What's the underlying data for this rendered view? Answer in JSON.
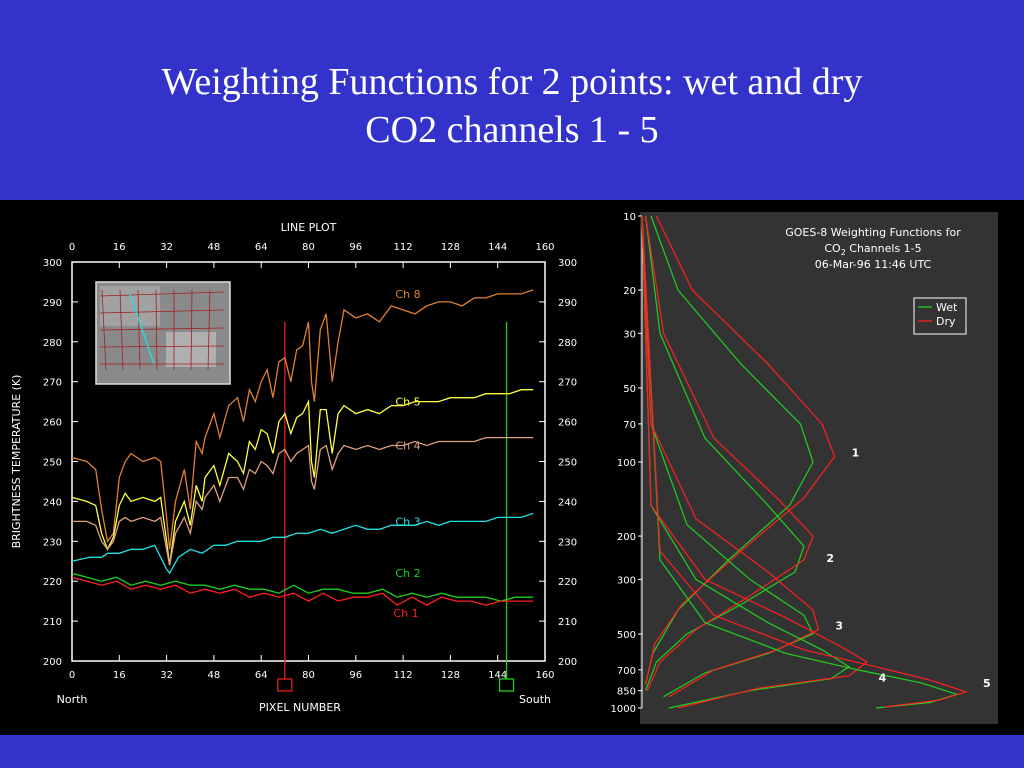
{
  "slide": {
    "title_line1": "Weighting Functions for 2 points: wet and dry",
    "title_line2": "CO2 channels 1 - 5"
  },
  "colors": {
    "background": "#3333cc",
    "panel": "#000000",
    "ch8": "#e08030",
    "ch5": "#ffff40",
    "ch4": "#e0a080",
    "ch3": "#20e0e0",
    "ch2": "#20d020",
    "ch1": "#ff2020",
    "wet": "#20d020",
    "dry": "#ff2020"
  },
  "chart_data": [
    {
      "type": "line",
      "title": "LINE PLOT",
      "xlabel": "PIXEL NUMBER",
      "ylabel": "BRIGHTNESS TEMPERATURE (K)",
      "xlim": [
        0,
        160
      ],
      "ylim": [
        200,
        300
      ],
      "x_ticks": [
        0,
        16,
        32,
        48,
        64,
        80,
        96,
        112,
        128,
        144,
        160
      ],
      "y_ticks": [
        200,
        210,
        220,
        230,
        240,
        250,
        260,
        270,
        280,
        290,
        300
      ],
      "x_left_label": "North",
      "x_right_label": "South",
      "markers": [
        {
          "x": 72,
          "color": "#e02020"
        },
        {
          "x": 147,
          "color": "#20d020"
        }
      ],
      "series": [
        {
          "name": "Ch 8",
          "color": "#e08030",
          "x": [
            0,
            5,
            8,
            10,
            12,
            14,
            16,
            18,
            20,
            24,
            28,
            30,
            32,
            33,
            35,
            38,
            40,
            42,
            44,
            45,
            48,
            50,
            53,
            56,
            58,
            60,
            62,
            64,
            66,
            68,
            70,
            72,
            74,
            76,
            78,
            80,
            81,
            82,
            84,
            86,
            88,
            90,
            92,
            96,
            100,
            104,
            108,
            112,
            116,
            120,
            124,
            128,
            132,
            136,
            140,
            144,
            148,
            152,
            156
          ],
          "y": [
            251,
            250,
            248,
            238,
            230,
            232,
            246,
            250,
            252,
            250,
            251,
            250,
            236,
            228,
            240,
            248,
            238,
            255,
            252,
            256,
            262,
            256,
            264,
            266,
            260,
            268,
            265,
            270,
            273,
            266,
            275,
            276,
            270,
            278,
            279,
            285,
            270,
            265,
            283,
            287,
            270,
            280,
            288,
            286,
            287,
            285,
            289,
            288,
            287,
            289,
            290,
            290,
            289,
            291,
            291,
            292,
            292,
            292,
            293
          ]
        },
        {
          "name": "Ch 5",
          "color": "#ffff40",
          "x": [
            0,
            5,
            8,
            10,
            12,
            14,
            16,
            18,
            20,
            24,
            28,
            30,
            32,
            33,
            35,
            38,
            40,
            42,
            44,
            45,
            48,
            50,
            53,
            56,
            58,
            60,
            62,
            64,
            66,
            68,
            70,
            72,
            74,
            76,
            78,
            80,
            81,
            82,
            84,
            86,
            88,
            90,
            92,
            96,
            100,
            104,
            108,
            112,
            116,
            120,
            124,
            128,
            132,
            136,
            140,
            144,
            148,
            152,
            156
          ],
          "y": [
            241,
            240,
            239,
            232,
            228,
            231,
            239,
            242,
            240,
            241,
            240,
            241,
            230,
            224,
            235,
            240,
            234,
            244,
            240,
            246,
            249,
            244,
            252,
            250,
            247,
            255,
            253,
            258,
            257,
            252,
            260,
            262,
            257,
            261,
            262,
            265,
            250,
            246,
            263,
            263,
            252,
            262,
            264,
            262,
            263,
            262,
            264,
            264,
            265,
            265,
            265,
            266,
            266,
            266,
            267,
            267,
            267,
            268,
            268
          ]
        },
        {
          "name": "Ch 4",
          "color": "#e0a080",
          "x": [
            0,
            5,
            8,
            10,
            12,
            14,
            16,
            18,
            20,
            24,
            28,
            30,
            32,
            33,
            35,
            38,
            40,
            42,
            44,
            45,
            48,
            50,
            53,
            56,
            58,
            60,
            62,
            64,
            66,
            68,
            70,
            72,
            74,
            76,
            78,
            80,
            81,
            82,
            84,
            86,
            88,
            90,
            92,
            96,
            100,
            104,
            108,
            112,
            116,
            120,
            124,
            128,
            132,
            136,
            140,
            144,
            148,
            152,
            156
          ],
          "y": [
            235,
            235,
            234,
            230,
            228,
            230,
            235,
            236,
            235,
            236,
            235,
            236,
            228,
            224,
            232,
            236,
            232,
            240,
            238,
            241,
            244,
            240,
            246,
            246,
            243,
            248,
            247,
            250,
            249,
            247,
            252,
            253,
            250,
            252,
            253,
            254,
            245,
            243,
            253,
            254,
            248,
            252,
            254,
            253,
            254,
            253,
            254,
            254,
            255,
            254,
            255,
            255,
            255,
            255,
            256,
            256,
            256,
            256,
            256
          ]
        },
        {
          "name": "Ch 3",
          "color": "#20e0e0",
          "x": [
            0,
            6,
            10,
            12,
            16,
            20,
            24,
            28,
            30,
            32,
            33,
            36,
            40,
            44,
            48,
            52,
            56,
            60,
            64,
            68,
            72,
            76,
            80,
            84,
            88,
            92,
            96,
            100,
            104,
            108,
            112,
            116,
            120,
            124,
            128,
            132,
            136,
            140,
            144,
            148,
            152,
            156
          ],
          "y": [
            225,
            226,
            226,
            227,
            227,
            228,
            228,
            229,
            226,
            223,
            222,
            226,
            228,
            227,
            229,
            229,
            230,
            230,
            230,
            231,
            231,
            232,
            232,
            233,
            232,
            233,
            234,
            233,
            233,
            234,
            234,
            234,
            235,
            234,
            235,
            235,
            235,
            235,
            236,
            236,
            236,
            237
          ]
        },
        {
          "name": "Ch 2",
          "color": "#20d020",
          "x": [
            0,
            5,
            10,
            15,
            20,
            25,
            30,
            35,
            40,
            45,
            50,
            55,
            60,
            65,
            70,
            75,
            80,
            85,
            90,
            95,
            100,
            105,
            110,
            115,
            120,
            125,
            130,
            135,
            140,
            145,
            150,
            156
          ],
          "y": [
            222,
            221,
            220,
            221,
            219,
            220,
            219,
            220,
            219,
            219,
            218,
            219,
            218,
            218,
            217,
            219,
            217,
            218,
            218,
            217,
            217,
            218,
            216,
            217,
            216,
            217,
            216,
            216,
            216,
            215,
            216,
            216
          ]
        },
        {
          "name": "Ch 1",
          "color": "#ff2020",
          "x": [
            0,
            5,
            10,
            15,
            20,
            25,
            30,
            35,
            40,
            45,
            50,
            55,
            60,
            65,
            70,
            75,
            80,
            85,
            90,
            95,
            100,
            105,
            110,
            115,
            120,
            125,
            130,
            135,
            140,
            145,
            150,
            156
          ],
          "y": [
            221,
            220,
            219,
            220,
            218,
            219,
            218,
            219,
            217,
            218,
            217,
            218,
            216,
            217,
            216,
            217,
            215,
            217,
            215,
            216,
            216,
            217,
            214,
            216,
            214,
            216,
            215,
            215,
            214,
            215,
            215,
            215
          ]
        }
      ]
    },
    {
      "type": "line",
      "title": "GOES-8 Weighting Functions for",
      "subtitle_prefix": "CO",
      "subtitle_sub": "2",
      "subtitle_suffix": " Channels 1-5",
      "subtitle2": "06-Mar-96 11:46 UTC",
      "y_scale": "log",
      "y_reversed": true,
      "ylim": [
        10,
        1000
      ],
      "y_ticks": [
        10,
        20,
        30,
        50,
        70,
        100,
        200,
        300,
        500,
        700,
        850,
        1000
      ],
      "legend": [
        "Wet",
        "Dry"
      ],
      "legend_position": "top-right",
      "series": [
        {
          "name": "Wet",
          "channel": "1",
          "color": "#20d020",
          "w": [
            0.05,
            0.2,
            0.55,
            0.88,
            0.95,
            0.82,
            0.48,
            0.2,
            0.06,
            0.02
          ],
          "p": [
            10,
            20,
            40,
            70,
            100,
            150,
            250,
            400,
            600,
            800
          ]
        },
        {
          "name": "Dry",
          "channel": "1",
          "color": "#ff2020",
          "w": [
            0.08,
            0.28,
            0.7,
            1.0,
            1.07,
            0.9,
            0.55,
            0.22,
            0.07,
            0.02
          ],
          "p": [
            10,
            20,
            40,
            70,
            95,
            140,
            230,
            380,
            550,
            800
          ]
        },
        {
          "name": "Wet",
          "channel": "2",
          "color": "#20d020",
          "w": [
            0.02,
            0.1,
            0.35,
            0.7,
            0.9,
            0.85,
            0.55,
            0.25,
            0.08,
            0.02
          ],
          "p": [
            10,
            30,
            80,
            150,
            220,
            280,
            380,
            500,
            650,
            850
          ]
        },
        {
          "name": "Dry",
          "channel": "2",
          "color": "#ff2020",
          "w": [
            0.02,
            0.12,
            0.4,
            0.75,
            0.95,
            0.9,
            0.6,
            0.3,
            0.1,
            0.03
          ],
          "p": [
            10,
            30,
            80,
            140,
            200,
            250,
            350,
            480,
            650,
            850
          ]
        },
        {
          "name": "Wet",
          "channel": "3",
          "color": "#20d020",
          "w": [
            0.0,
            0.05,
            0.25,
            0.6,
            0.9,
            0.95,
            0.7,
            0.35,
            0.12
          ],
          "p": [
            10,
            70,
            180,
            300,
            420,
            500,
            600,
            720,
            900
          ]
        },
        {
          "name": "Dry",
          "channel": "3",
          "color": "#ff2020",
          "w": [
            0.0,
            0.05,
            0.3,
            0.7,
            0.95,
            0.98,
            0.75,
            0.4,
            0.15
          ],
          "p": [
            10,
            70,
            170,
            280,
            400,
            480,
            580,
            700,
            900
          ]
        },
        {
          "name": "Wet",
          "channel": "4",
          "color": "#20d020",
          "w": [
            0.0,
            0.05,
            0.3,
            0.7,
            1.0,
            1.15,
            1.05,
            0.6,
            0.15
          ],
          "p": [
            10,
            150,
            300,
            450,
            580,
            680,
            760,
            850,
            1000
          ]
        },
        {
          "name": "Dry",
          "channel": "4",
          "color": "#ff2020",
          "w": [
            0.0,
            0.05,
            0.35,
            0.8,
            1.1,
            1.25,
            1.15,
            0.65,
            0.2
          ],
          "p": [
            10,
            150,
            300,
            430,
            560,
            650,
            740,
            830,
            1000
          ]
        },
        {
          "name": "Wet",
          "channel": "5",
          "color": "#20d020",
          "w": [
            0.0,
            0.1,
            0.35,
            0.8,
            1.2,
            1.55,
            1.75,
            1.6,
            1.3
          ],
          "p": [
            10,
            250,
            450,
            600,
            700,
            790,
            880,
            950,
            1000
          ]
        },
        {
          "name": "Dry",
          "channel": "5",
          "color": "#ff2020",
          "w": [
            0.0,
            0.1,
            0.4,
            0.9,
            1.3,
            1.6,
            1.8,
            1.65,
            1.35
          ],
          "p": [
            10,
            230,
            420,
            580,
            680,
            770,
            860,
            930,
            990
          ]
        }
      ],
      "channel_labels": [
        {
          "label": "1",
          "w": 1.12,
          "p": 95
        },
        {
          "label": "2",
          "w": 0.98,
          "p": 255
        },
        {
          "label": "3",
          "w": 1.03,
          "p": 480
        },
        {
          "label": "4",
          "w": 1.27,
          "p": 780
        },
        {
          "label": "5",
          "w": 1.85,
          "p": 820
        }
      ]
    }
  ]
}
